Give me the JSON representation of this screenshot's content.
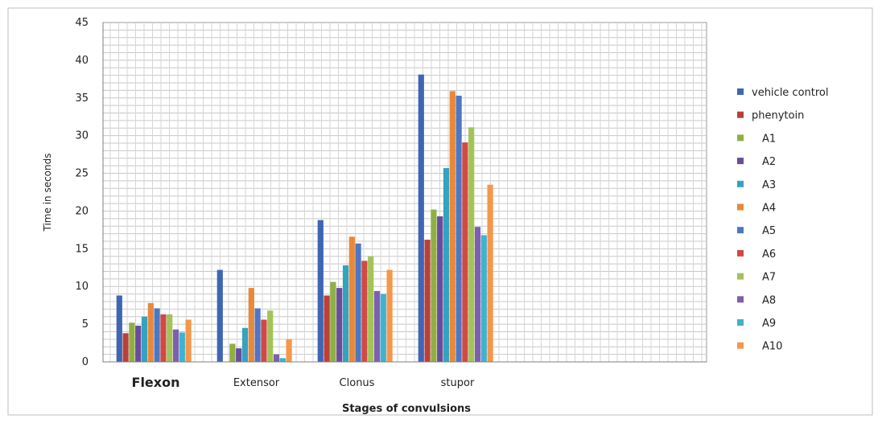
{
  "chart_data": {
    "type": "bar",
    "title": "",
    "xlabel": "Stages of convulsions",
    "ylabel": "Time in seconds",
    "ylim": [
      0,
      45
    ],
    "yticks": [
      0,
      5,
      10,
      15,
      20,
      25,
      30,
      35,
      40,
      45
    ],
    "grid": true,
    "legend_position": "right",
    "categories": [
      "Flexon",
      "Extensor",
      "Clonus",
      "stupor"
    ],
    "emphasized_category": "Flexon",
    "series": [
      {
        "name": "vehicle control",
        "color": "#3f66b3",
        "values": [
          8.8,
          12.2,
          18.8,
          38.1
        ]
      },
      {
        "name": "phenytoin",
        "color": "#b9403b",
        "values": [
          3.8,
          0,
          8.8,
          16.2
        ]
      },
      {
        "name": "A1",
        "color": "#8faf45",
        "values": [
          5.2,
          2.4,
          10.6,
          20.2
        ]
      },
      {
        "name": "A2",
        "color": "#6a4c9a",
        "values": [
          4.8,
          1.8,
          9.8,
          19.3
        ]
      },
      {
        "name": "A3",
        "color": "#34a3c0",
        "values": [
          6.0,
          4.5,
          12.8,
          25.7
        ]
      },
      {
        "name": "A4",
        "color": "#e8893a",
        "values": [
          7.8,
          9.8,
          16.6,
          35.9
        ]
      },
      {
        "name": "A5",
        "color": "#4e76c2",
        "values": [
          7.1,
          7.1,
          15.7,
          35.3
        ]
      },
      {
        "name": "A6",
        "color": "#cf4a45",
        "values": [
          6.3,
          5.6,
          13.4,
          29.1
        ]
      },
      {
        "name": "A7",
        "color": "#a2c457",
        "values": [
          6.3,
          6.8,
          14.0,
          31.1
        ]
      },
      {
        "name": "A8",
        "color": "#7e5fad",
        "values": [
          4.3,
          1.0,
          9.4,
          17.9
        ]
      },
      {
        "name": "A9",
        "color": "#40b2cf",
        "values": [
          3.9,
          0.5,
          9.0,
          16.8
        ]
      },
      {
        "name": "A10",
        "color": "#f5974a",
        "values": [
          5.6,
          3.0,
          12.2,
          23.5
        ]
      }
    ]
  }
}
